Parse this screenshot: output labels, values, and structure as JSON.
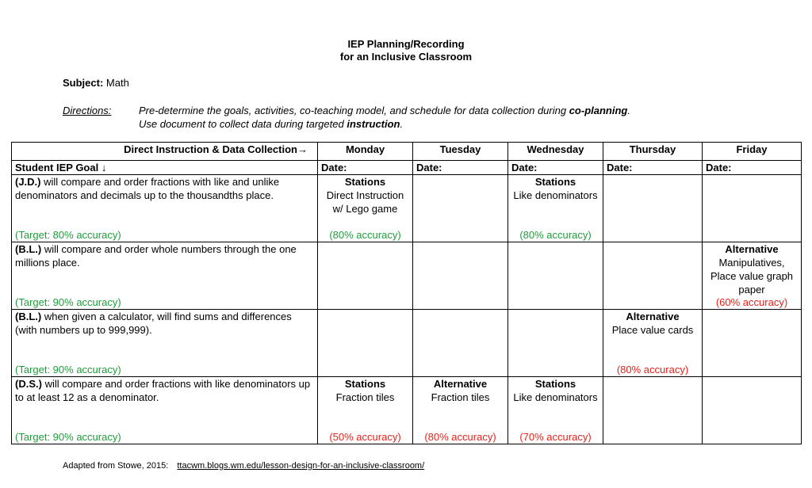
{
  "title_line1": "IEP Planning/Recording",
  "title_line2": "for an Inclusive Classroom",
  "subject_label": "Subject:",
  "subject_value": "Math",
  "directions_label": "Directions:",
  "directions_line1_pre": "Pre-determine the goals, activities, co-teaching model, and schedule for data collection during ",
  "directions_line1_bold": "co-planning",
  "directions_line1_post": ".",
  "directions_line2_pre": "Use document to collect data during targeted ",
  "directions_line2_bold": "instruction",
  "directions_line2_post": ".",
  "header": {
    "direct_instruction": "Direct Instruction & Data Collection→",
    "student_goal": "Student IEP Goal ↓",
    "days": [
      "Monday",
      "Tuesday",
      "Wednesday",
      "Thursday",
      "Friday"
    ],
    "date_label": "Date:"
  },
  "goals": [
    {
      "initials": "(J.D.)",
      "text": " will compare and order fractions with like and unlike denominators and decimals up to the thousandths place.",
      "target": "(Target: 80% accuracy)",
      "days": [
        {
          "title": "Stations",
          "detail": "Direct Instruction w/ Lego game",
          "accuracy": "(80% accuracy)",
          "color": "green"
        },
        {
          "title": "",
          "detail": "",
          "accuracy": "",
          "color": ""
        },
        {
          "title": "Stations",
          "detail": "Like denominators",
          "accuracy": "(80% accuracy)",
          "color": "green"
        },
        {
          "title": "",
          "detail": "",
          "accuracy": "",
          "color": ""
        },
        {
          "title": "",
          "detail": "",
          "accuracy": "",
          "color": ""
        }
      ]
    },
    {
      "initials": "(B.L.)",
      "text": " will compare and order whole numbers through the one millions place.",
      "target": "(Target: 90% accuracy)",
      "days": [
        {
          "title": "",
          "detail": "",
          "accuracy": "",
          "color": ""
        },
        {
          "title": "",
          "detail": "",
          "accuracy": "",
          "color": ""
        },
        {
          "title": "",
          "detail": "",
          "accuracy": "",
          "color": ""
        },
        {
          "title": "",
          "detail": "",
          "accuracy": "",
          "color": ""
        },
        {
          "title": "Alternative",
          "detail": "Manipulatives, Place value graph paper",
          "accuracy": "(60% accuracy)",
          "color": "red"
        }
      ]
    },
    {
      "initials": "(B.L.)",
      "text": " when given a calculator, will find sums and differences (with numbers up to 999,999).",
      "target": "(Target: 90% accuracy)",
      "days": [
        {
          "title": "",
          "detail": "",
          "accuracy": "",
          "color": ""
        },
        {
          "title": "",
          "detail": "",
          "accuracy": "",
          "color": ""
        },
        {
          "title": "",
          "detail": "",
          "accuracy": "",
          "color": ""
        },
        {
          "title": "Alternative",
          "detail": "Place value cards",
          "accuracy": "(80% accuracy)",
          "color": "red"
        },
        {
          "title": "",
          "detail": "",
          "accuracy": "",
          "color": ""
        }
      ]
    },
    {
      "initials": "(D.S.)",
      "text": " will compare and order fractions with like denominators up to at least 12 as a denominator.",
      "target": "(Target: 90% accuracy)",
      "days": [
        {
          "title": "Stations",
          "detail": "Fraction tiles",
          "accuracy": "(50% accuracy)",
          "color": "red"
        },
        {
          "title": "Alternative",
          "detail": "Fraction tiles",
          "accuracy": "(80% accuracy)",
          "color": "red"
        },
        {
          "title": "Stations",
          "detail": "Like denominators",
          "accuracy": "(70% accuracy)",
          "color": "red"
        },
        {
          "title": "",
          "detail": "",
          "accuracy": "",
          "color": ""
        },
        {
          "title": "",
          "detail": "",
          "accuracy": "",
          "color": ""
        }
      ]
    }
  ],
  "footer_text": "Adapted from Stowe, 2015:",
  "footer_url": "ttacwm.blogs.wm.edu/lesson-design-for-an-inclusive-classroom/",
  "colors": {
    "green": "#1f9d3a",
    "red": "#e8211a"
  }
}
